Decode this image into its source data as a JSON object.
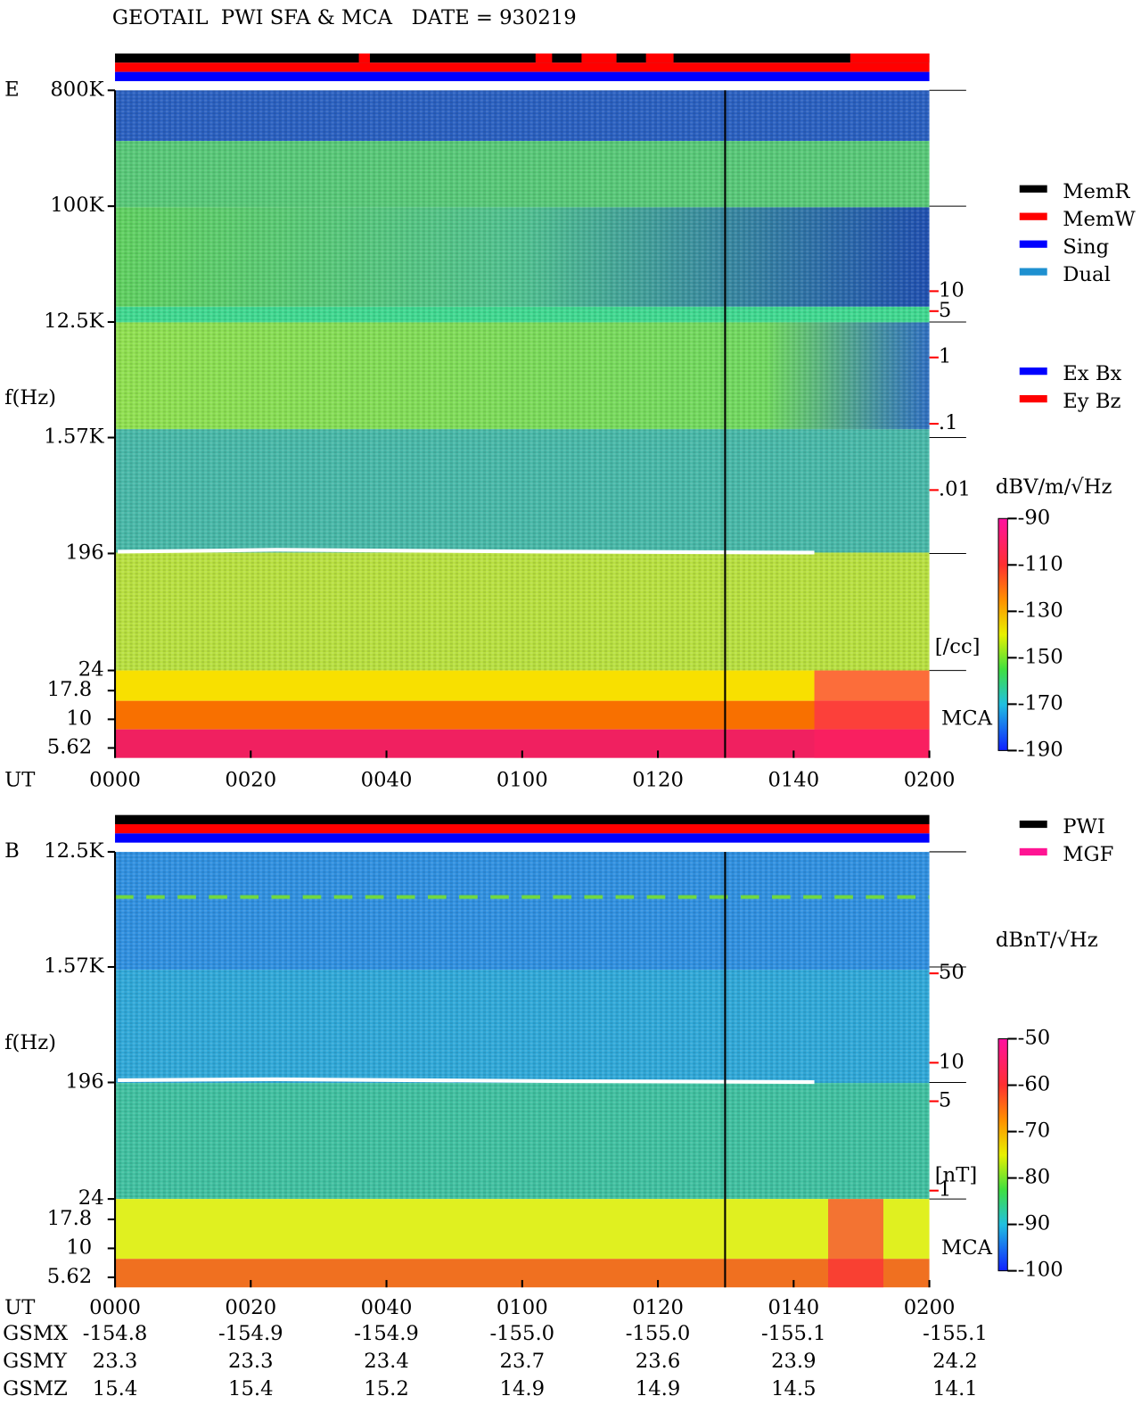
{
  "chart_data": [
    {
      "type": "spectrogram",
      "title": "GEOTAIL  PWI SFA & MCA   DATE = 930219",
      "panel_label": "E",
      "ylabel": "f(Hz)",
      "xlabel": "UT",
      "log_y": true,
      "ylim": [
        24,
        800000
      ],
      "yticks": [
        {
          "value": 800000,
          "label": "800K"
        },
        {
          "value": 100000,
          "label": "100K"
        },
        {
          "value": 12500,
          "label": "12.5K"
        },
        {
          "value": 1570,
          "label": "1.57K"
        },
        196,
        24
      ],
      "mca_label": "MCA",
      "mca_ylim": [
        4.6,
        26.7
      ],
      "mca_yticks": [
        17.8,
        10,
        5.62
      ],
      "xlim": [
        0,
        120
      ],
      "xticks": [
        {
          "value": 0,
          "label": "0000"
        },
        {
          "value": 20,
          "label": "0020"
        },
        {
          "value": 40,
          "label": "0040"
        },
        {
          "value": 60,
          "label": "0100"
        },
        {
          "value": 80,
          "label": "0120"
        },
        {
          "value": 100,
          "label": "0140"
        },
        {
          "value": 120,
          "label": "0200"
        }
      ],
      "colorbar": {
        "label": "dBV/m/√Hz",
        "clim": [
          -190,
          -90
        ],
        "ticks": [
          -90,
          -110,
          -130,
          -150,
          -170,
          -190
        ]
      },
      "right_axis": {
        "ylim": [
          1.9e-05,
          10700
        ],
        "ticks": [
          10,
          5,
          1,
          {
            "value": 0.1,
            "label": ".1"
          },
          {
            "value": 0.01,
            "label": ".01"
          }
        ],
        "unit_label": "[/cc]",
        "color": "#ff0000"
      },
      "legend": [
        {
          "name": "MemR",
          "color": "#000000"
        },
        {
          "name": "MemW",
          "color": "#ff0000"
        },
        {
          "name": "Sing",
          "color": "#0000ff"
        },
        {
          "name": "Dual",
          "color": "#1e90d0"
        }
      ],
      "legend2": [
        {
          "name": "Ex Bx",
          "color": "#0000ff"
        },
        {
          "name": "Ey Bz",
          "color": "#ff0000"
        }
      ]
    },
    {
      "type": "spectrogram",
      "panel_label": "B",
      "ylabel": "f(Hz)",
      "xlabel": "UT",
      "log_y": true,
      "ylim": [
        24,
        12500
      ],
      "yticks": [
        {
          "value": 12500,
          "label": "12.5K"
        },
        {
          "value": 1570,
          "label": "1.57K"
        },
        196,
        24
      ],
      "mca_label": "MCA",
      "mca_ylim": [
        4.6,
        26.7
      ],
      "mca_yticks": [
        17.8,
        10,
        5.62
      ],
      "xlim": [
        0,
        120
      ],
      "xticks": [
        {
          "value": 0,
          "label": "0000"
        },
        {
          "value": 20,
          "label": "0020"
        },
        {
          "value": 40,
          "label": "0040"
        },
        {
          "value": 60,
          "label": "0100"
        },
        {
          "value": 80,
          "label": "0120"
        },
        {
          "value": 100,
          "label": "0140"
        },
        {
          "value": 120,
          "label": "0200"
        }
      ],
      "colorbar": {
        "label": "dBnT/√Hz",
        "clim": [
          -100,
          -50
        ],
        "ticks": [
          -50,
          -60,
          -70,
          -80,
          -90,
          -100
        ]
      },
      "right_axis": {
        "ylim": [
          0.86,
          446
        ],
        "ticks": [
          50,
          10,
          5,
          1
        ],
        "unit_label": "[nT]",
        "color": "#ff0000"
      },
      "legend": [
        {
          "name": "PWI",
          "color": "#000000"
        },
        {
          "name": "MGF",
          "color": "#ff1493"
        }
      ],
      "orbit": [
        {
          "name": "GSMX",
          "values": [
            "-154.8",
            "-154.9",
            "-154.9",
            "-155.0",
            "-155.0",
            "-155.1",
            "-155.1"
          ]
        },
        {
          "name": "GSMY",
          "values": [
            "23.3",
            "23.3",
            "23.4",
            "23.7",
            "23.6",
            "23.9",
            "24.2"
          ]
        },
        {
          "name": "GSMZ",
          "values": [
            "15.4",
            "15.4",
            "15.2",
            "14.9",
            "14.9",
            "14.5",
            "14.1"
          ]
        }
      ]
    }
  ]
}
